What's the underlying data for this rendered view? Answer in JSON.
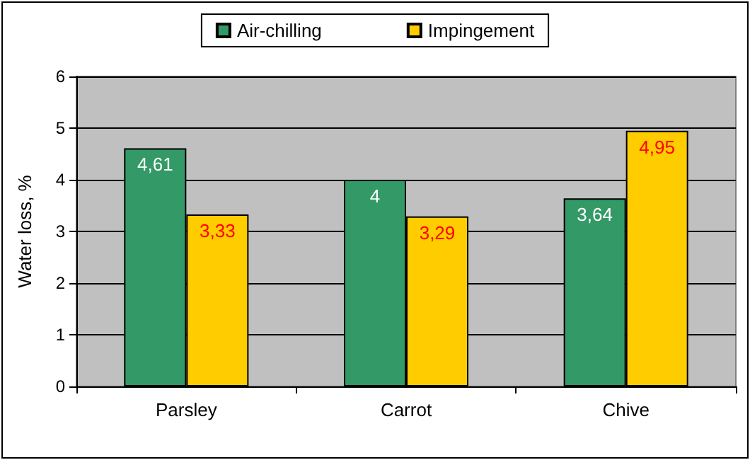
{
  "chart_data": {
    "type": "bar",
    "ylabel": "Water loss, %",
    "categories": [
      "Parsley",
      "Carrot",
      "Chive"
    ],
    "series": [
      {
        "name": "Air-chilling",
        "color": "#339966",
        "values": [
          4.61,
          4,
          3.64
        ],
        "value_labels": [
          "4,61",
          "4",
          "3,64"
        ]
      },
      {
        "name": "Impingement",
        "color": "#ffcc00",
        "values": [
          3.33,
          3.29,
          4.95
        ],
        "value_labels": [
          "3,33",
          "3,29",
          "4,95"
        ]
      }
    ],
    "ylim": [
      0,
      6
    ],
    "yticks": [
      0,
      1,
      2,
      3,
      4,
      5,
      6
    ],
    "grid": "y",
    "legend": "top"
  }
}
